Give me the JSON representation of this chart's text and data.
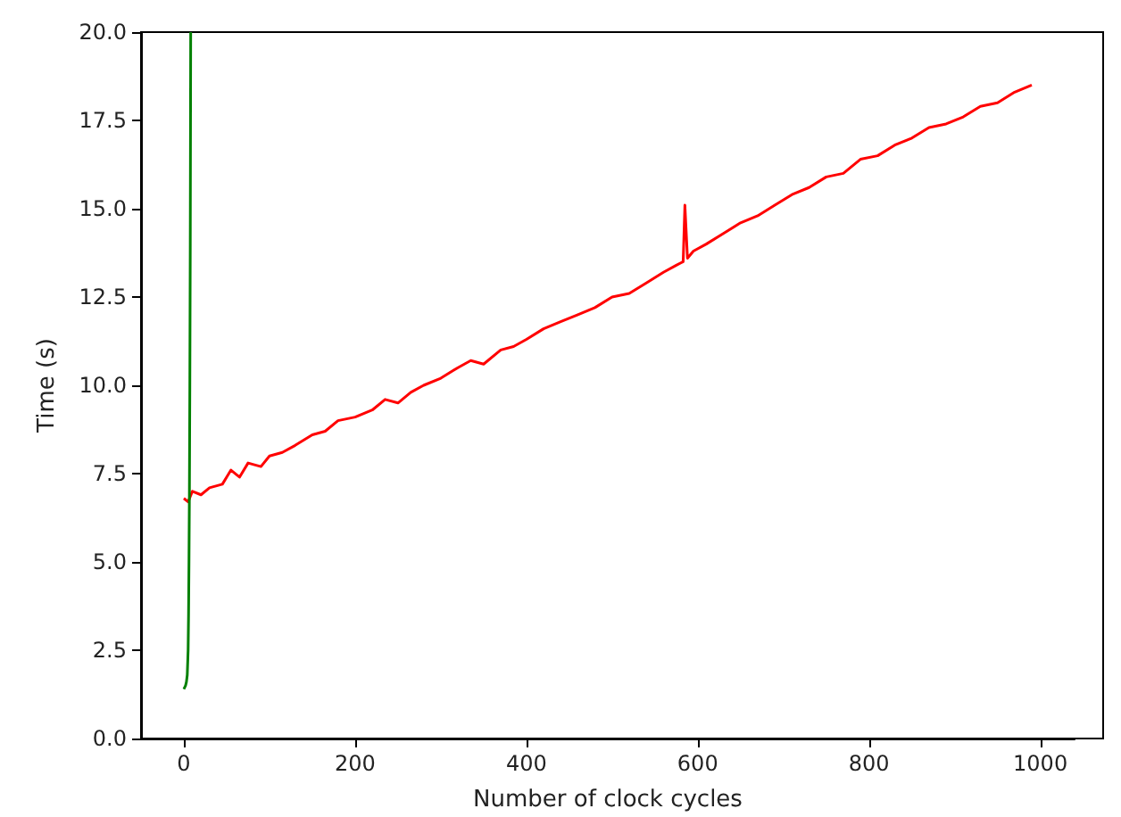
{
  "chart_data": {
    "type": "line",
    "xlabel": "Number of clock cycles",
    "ylabel": "Time (s)",
    "xlim": [
      -50,
      1040
    ],
    "xticks": [
      0,
      200,
      400,
      600,
      800,
      1000
    ],
    "ylim": [
      0,
      20
    ],
    "yticks": [
      {
        "value": 0,
        "label": "0.0"
      },
      {
        "value": 2.5,
        "label": "2.5"
      },
      {
        "value": 5,
        "label": "5.0"
      },
      {
        "value": 7.5,
        "label": "7.5"
      },
      {
        "value": 10,
        "label": "10.0"
      },
      {
        "value": 12.5,
        "label": "12.5"
      },
      {
        "value": 15,
        "label": "15.0"
      },
      {
        "value": 17.5,
        "label": "17.5"
      },
      {
        "value": 20,
        "label": "20.0"
      }
    ],
    "grid": false,
    "legend": false,
    "marker": "none",
    "line_style": "solid",
    "series": [
      {
        "color": "#ff0000",
        "x": [
          0,
          5,
          10,
          20,
          30,
          45,
          55,
          65,
          75,
          90,
          100,
          115,
          130,
          150,
          165,
          180,
          200,
          220,
          235,
          250,
          265,
          280,
          300,
          320,
          335,
          350,
          370,
          385,
          400,
          420,
          440,
          460,
          480,
          500,
          520,
          540,
          560,
          575,
          583,
          585,
          588,
          595,
          610,
          630,
          650,
          670,
          690,
          710,
          730,
          750,
          770,
          790,
          810,
          830,
          850,
          870,
          890,
          910,
          930,
          950,
          970,
          990
        ],
        "values": [
          6.8,
          6.7,
          7.0,
          6.9,
          7.1,
          7.2,
          7.6,
          7.4,
          7.8,
          7.7,
          8.0,
          8.1,
          8.3,
          8.6,
          8.7,
          9.0,
          9.1,
          9.3,
          9.6,
          9.5,
          9.8,
          10.0,
          10.2,
          10.5,
          10.7,
          10.6,
          11.0,
          11.1,
          11.3,
          11.6,
          11.8,
          12.0,
          12.2,
          12.5,
          12.6,
          12.9,
          13.2,
          13.4,
          13.5,
          15.1,
          13.6,
          13.8,
          14.0,
          14.3,
          14.6,
          14.8,
          15.1,
          15.4,
          15.6,
          15.9,
          16.0,
          16.4,
          16.5,
          16.8,
          17.0,
          17.3,
          17.4,
          17.6,
          17.9,
          18.0,
          18.3,
          18.5
        ]
      },
      {
        "color": "#008000",
        "x": [
          0,
          2,
          3,
          4,
          5,
          5.5,
          6,
          6.5,
          7,
          7.5,
          8
        ],
        "values": [
          1.4,
          1.5,
          1.6,
          1.8,
          2.5,
          3.5,
          5,
          7,
          10,
          14,
          20
        ]
      }
    ]
  }
}
